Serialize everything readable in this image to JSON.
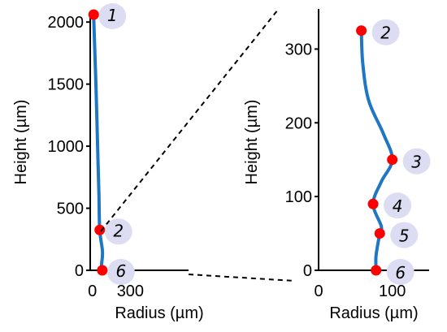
{
  "chart_data": [
    {
      "type": "line",
      "title": "",
      "xlabel": "Radius (µm)",
      "ylabel": "Height (µm)",
      "xlim": [
        -30,
        760
      ],
      "ylim": [
        0,
        2060
      ],
      "xticks": [
        0,
        300
      ],
      "yticks": [
        0,
        500,
        1000,
        1500,
        2000
      ],
      "grid": false,
      "legend": "none",
      "series": [
        {
          "color": "#1f77c4",
          "points": [
            {
              "x": 10,
              "y": 2060
            },
            {
              "x": 18,
              "y": 1800
            },
            {
              "x": 28,
              "y": 1500
            },
            {
              "x": 36,
              "y": 1200
            },
            {
              "x": 44,
              "y": 900
            },
            {
              "x": 52,
              "y": 600
            },
            {
              "x": 58,
              "y": 325
            },
            {
              "x": 80,
              "y": 150
            },
            {
              "x": 72,
              "y": 40
            },
            {
              "x": 78,
              "y": 0
            }
          ]
        }
      ],
      "markers": [
        {
          "label": "1",
          "x": 10,
          "y": 2060,
          "color": "#ff0000"
        },
        {
          "label": "2",
          "x": 58,
          "y": 325,
          "color": "#ff0000"
        },
        {
          "label": "6",
          "x": 78,
          "y": 0,
          "color": "#ff0000"
        }
      ]
    },
    {
      "type": "line",
      "title": "",
      "xlabel": "Radius (µm)",
      "ylabel": "Height (µm)",
      "xlim": [
        0,
        150
      ],
      "ylim": [
        0,
        350
      ],
      "xticks": [
        0,
        100
      ],
      "yticks": [
        0,
        100,
        200,
        300
      ],
      "grid": false,
      "legend": "none",
      "series": [
        {
          "color": "#1f77c4",
          "points": [
            {
              "x": 58,
              "y": 325
            },
            {
              "x": 60,
              "y": 280
            },
            {
              "x": 68,
              "y": 230
            },
            {
              "x": 88,
              "y": 185
            },
            {
              "x": 100,
              "y": 150
            },
            {
              "x": 85,
              "y": 120
            },
            {
              "x": 74,
              "y": 90
            },
            {
              "x": 85,
              "y": 60
            },
            {
              "x": 83,
              "y": 50
            },
            {
              "x": 78,
              "y": 20
            },
            {
              "x": 78,
              "y": 0
            }
          ]
        }
      ],
      "markers": [
        {
          "label": "2",
          "x": 58,
          "y": 325,
          "color": "#ff0000"
        },
        {
          "label": "3",
          "x": 100,
          "y": 150,
          "color": "#ff0000"
        },
        {
          "label": "4",
          "x": 74,
          "y": 90,
          "color": "#ff0000"
        },
        {
          "label": "5",
          "x": 83,
          "y": 50,
          "color": "#ff0000"
        },
        {
          "label": "6",
          "x": 78,
          "y": 0,
          "color": "#ff0000"
        }
      ]
    }
  ],
  "colors": {
    "curve": "#1f77c4",
    "marker": "#ff0000",
    "label_badge": "#dcdcf3",
    "axis": "#000000"
  }
}
